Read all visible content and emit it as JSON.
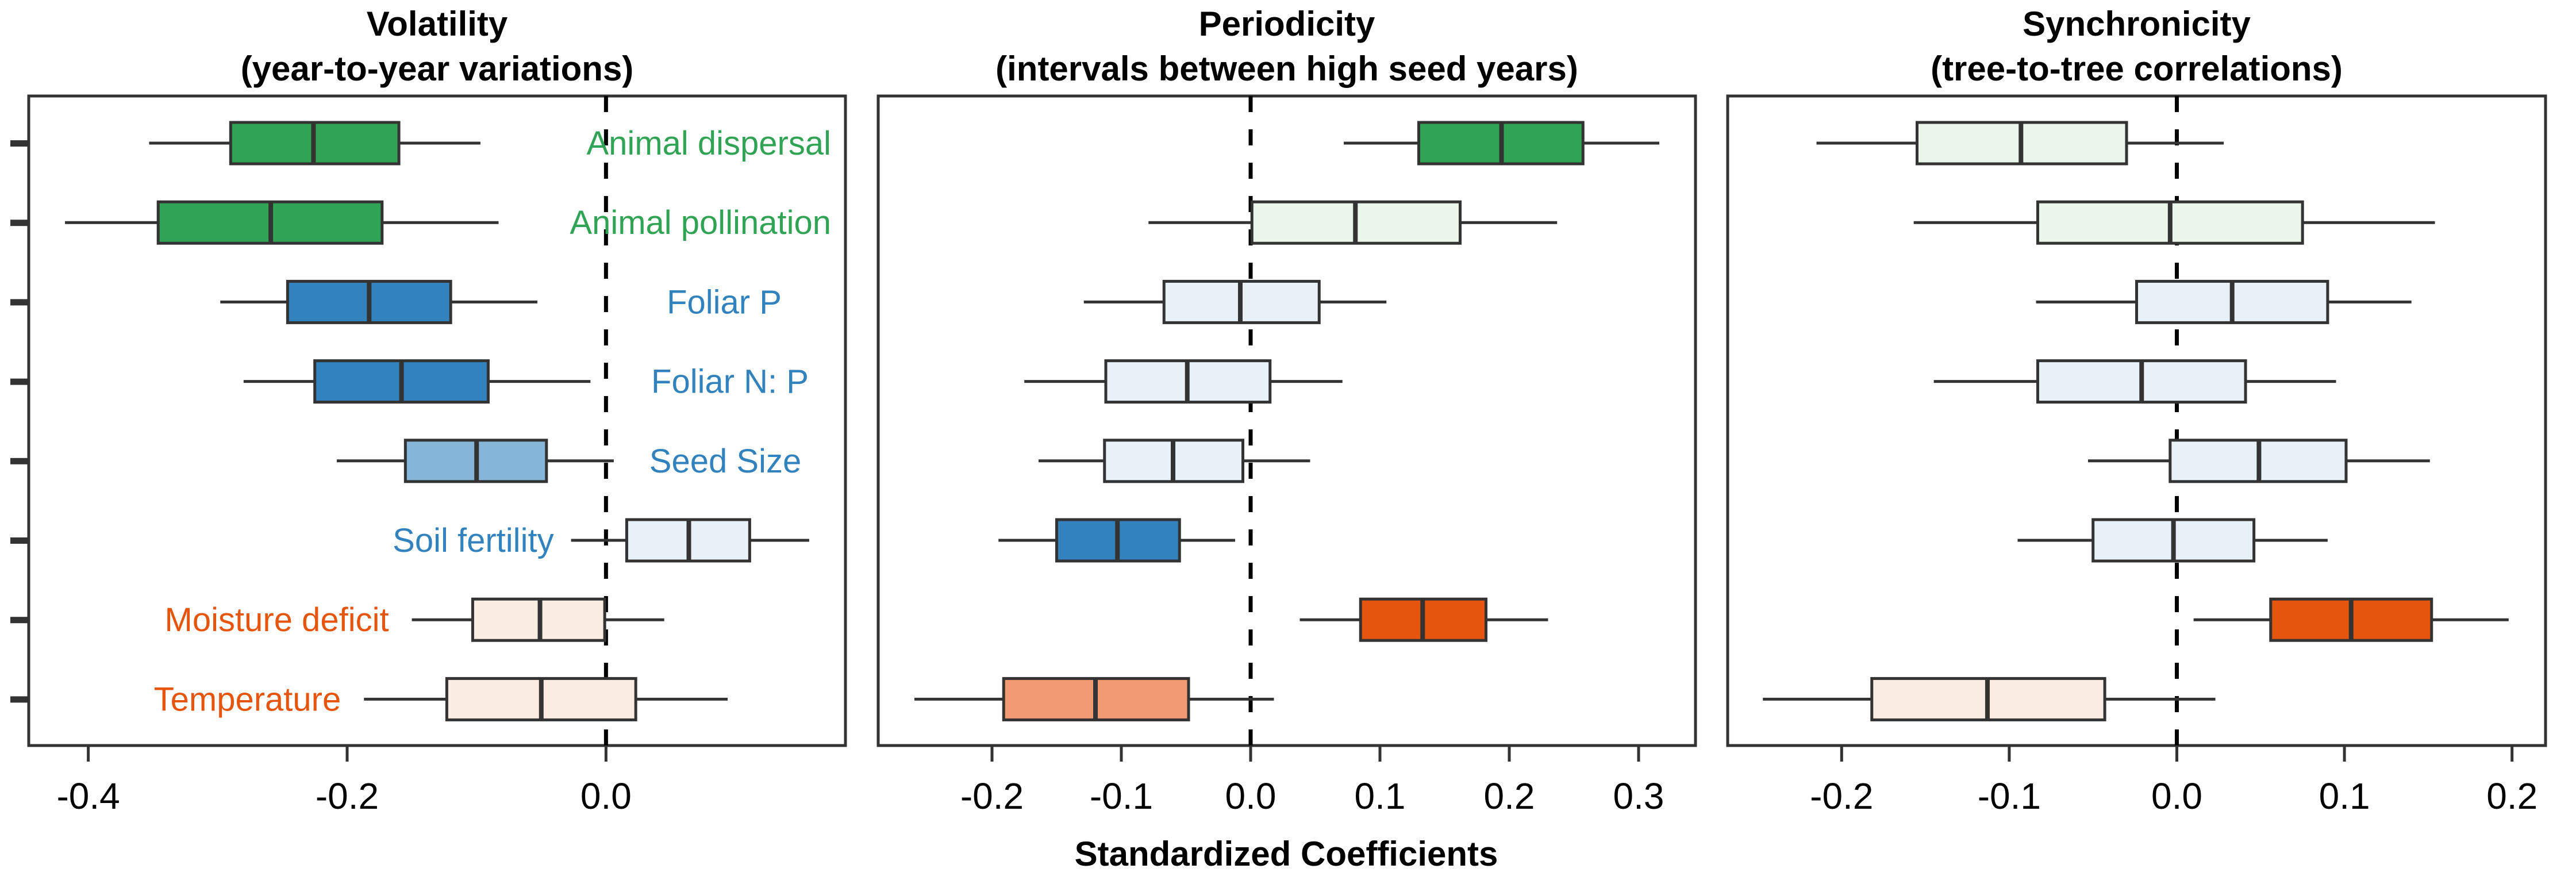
{
  "chart_data": {
    "type": "boxplot",
    "orientation": "horizontal",
    "xlabel": "Standardized Coefficients",
    "reference_line": {
      "x": 0,
      "style": "dashed"
    },
    "categories": [
      {
        "name": "Animal dispersal",
        "group": "biotic"
      },
      {
        "name": "Animal pollination",
        "group": "biotic"
      },
      {
        "name": "Foliar P",
        "group": "resource"
      },
      {
        "name": "Foliar N: P",
        "group": "resource"
      },
      {
        "name": "Seed Size",
        "group": "resource"
      },
      {
        "name": "Soil fertility",
        "group": "resource"
      },
      {
        "name": "Moisture deficit",
        "group": "climate"
      },
      {
        "name": "Temperature",
        "group": "climate"
      }
    ],
    "group_label_colors": {
      "biotic": "#31a354",
      "resource": "#3182bd",
      "climate": "#e6550d"
    },
    "panels": [
      {
        "title": "Volatility",
        "subtitle": "(year-to-year variations)",
        "xlim": [
          -0.446,
          0.185
        ],
        "xticks": [
          -0.4,
          -0.2,
          0.0
        ],
        "xtick_labels": [
          "-0.4",
          "-0.2",
          "0.0"
        ],
        "show_category_labels": true,
        "boxes": [
          {
            "category": "Animal dispersal",
            "whisker_low": -0.353,
            "q1": -0.29,
            "median": -0.226,
            "q3": -0.16,
            "whisker_high": -0.097,
            "fill": "#31a354"
          },
          {
            "category": "Animal pollination",
            "whisker_low": -0.418,
            "q1": -0.346,
            "median": -0.259,
            "q3": -0.173,
            "whisker_high": -0.083,
            "fill": "#31a354"
          },
          {
            "category": "Foliar P",
            "whisker_low": -0.298,
            "q1": -0.246,
            "median": -0.183,
            "q3": -0.12,
            "whisker_high": -0.053,
            "fill": "#3182bd"
          },
          {
            "category": "Foliar N: P",
            "whisker_low": -0.28,
            "q1": -0.225,
            "median": -0.158,
            "q3": -0.091,
            "whisker_high": -0.012,
            "fill": "#3182bd"
          },
          {
            "category": "Seed Size",
            "whisker_low": -0.208,
            "q1": -0.155,
            "median": -0.1,
            "q3": -0.046,
            "whisker_high": 0.006,
            "fill": "#85b5d9"
          },
          {
            "category": "Soil fertility",
            "whisker_low": -0.027,
            "q1": 0.016,
            "median": 0.064,
            "q3": 0.111,
            "whisker_high": 0.157,
            "fill": "#e8f0f8"
          },
          {
            "category": "Moisture deficit",
            "whisker_low": -0.15,
            "q1": -0.103,
            "median": -0.051,
            "q3": -0.001,
            "whisker_high": 0.045,
            "fill": "#fbece3"
          },
          {
            "category": "Temperature",
            "whisker_low": -0.187,
            "q1": -0.123,
            "median": -0.05,
            "q3": 0.023,
            "whisker_high": 0.094,
            "fill": "#fbece3"
          }
        ]
      },
      {
        "title": "Periodicity",
        "subtitle": "(intervals between high seed years)",
        "xlim": [
          -0.288,
          0.344
        ],
        "xticks": [
          -0.2,
          -0.1,
          0.0,
          0.1,
          0.2,
          0.3
        ],
        "xtick_labels": [
          "-0.2",
          "-0.1",
          "0.0",
          "0.1",
          "0.2",
          "0.3"
        ],
        "show_category_labels": false,
        "boxes": [
          {
            "category": "Animal dispersal",
            "whisker_low": 0.072,
            "q1": 0.13,
            "median": 0.194,
            "q3": 0.257,
            "whisker_high": 0.316,
            "fill": "#31a354"
          },
          {
            "category": "Animal pollination",
            "whisker_low": -0.079,
            "q1": 0.001,
            "median": 0.081,
            "q3": 0.162,
            "whisker_high": 0.237,
            "fill": "#eaf5ec"
          },
          {
            "category": "Foliar P",
            "whisker_low": -0.129,
            "q1": -0.067,
            "median": -0.008,
            "q3": 0.053,
            "whisker_high": 0.105,
            "fill": "#e8f0f8"
          },
          {
            "category": "Foliar N: P",
            "whisker_low": -0.175,
            "q1": -0.112,
            "median": -0.049,
            "q3": 0.015,
            "whisker_high": 0.071,
            "fill": "#e8f0f8"
          },
          {
            "category": "Seed Size",
            "whisker_low": -0.164,
            "q1": -0.113,
            "median": -0.06,
            "q3": -0.006,
            "whisker_high": 0.046,
            "fill": "#e8f0f8"
          },
          {
            "category": "Soil fertility",
            "whisker_low": -0.195,
            "q1": -0.15,
            "median": -0.103,
            "q3": -0.055,
            "whisker_high": -0.012,
            "fill": "#3182bd"
          },
          {
            "category": "Moisture deficit",
            "whisker_low": 0.038,
            "q1": 0.085,
            "median": 0.133,
            "q3": 0.182,
            "whisker_high": 0.23,
            "fill": "#e6550d"
          },
          {
            "category": "Temperature",
            "whisker_low": -0.26,
            "q1": -0.191,
            "median": -0.12,
            "q3": -0.048,
            "whisker_high": 0.018,
            "fill": "#f09b71"
          }
        ]
      },
      {
        "title": "Synchronicity",
        "subtitle": "(tree-to-tree correlations)",
        "xlim": [
          -0.268,
          0.22
        ],
        "xticks": [
          -0.2,
          -0.1,
          0.0,
          0.1,
          0.2
        ],
        "xtick_labels": [
          "-0.2",
          "-0.1",
          "0.0",
          "0.1",
          "0.2"
        ],
        "show_category_labels": false,
        "boxes": [
          {
            "category": "Animal dispersal",
            "whisker_low": -0.215,
            "q1": -0.155,
            "median": -0.093,
            "q3": -0.03,
            "whisker_high": 0.028,
            "fill": "#eaf5ec"
          },
          {
            "category": "Animal pollination",
            "whisker_low": -0.157,
            "q1": -0.083,
            "median": -0.004,
            "q3": 0.075,
            "whisker_high": 0.154,
            "fill": "#eaf5ec"
          },
          {
            "category": "Foliar P",
            "whisker_low": -0.084,
            "q1": -0.024,
            "median": 0.033,
            "q3": 0.09,
            "whisker_high": 0.14,
            "fill": "#e8f0f8"
          },
          {
            "category": "Foliar N: P",
            "whisker_low": -0.145,
            "q1": -0.083,
            "median": -0.021,
            "q3": 0.041,
            "whisker_high": 0.095,
            "fill": "#e8f0f8"
          },
          {
            "category": "Seed Size",
            "whisker_low": -0.053,
            "q1": -0.004,
            "median": 0.049,
            "q3": 0.101,
            "whisker_high": 0.151,
            "fill": "#e8f0f8"
          },
          {
            "category": "Soil fertility",
            "whisker_low": -0.095,
            "q1": -0.05,
            "median": -0.002,
            "q3": 0.046,
            "whisker_high": 0.09,
            "fill": "#e8f0f8"
          },
          {
            "category": "Moisture deficit",
            "whisker_low": 0.01,
            "q1": 0.056,
            "median": 0.104,
            "q3": 0.152,
            "whisker_high": 0.198,
            "fill": "#e6550d"
          },
          {
            "category": "Temperature",
            "whisker_low": -0.247,
            "q1": -0.182,
            "median": -0.113,
            "q3": -0.043,
            "whisker_high": 0.023,
            "fill": "#fbece3"
          }
        ]
      }
    ]
  }
}
